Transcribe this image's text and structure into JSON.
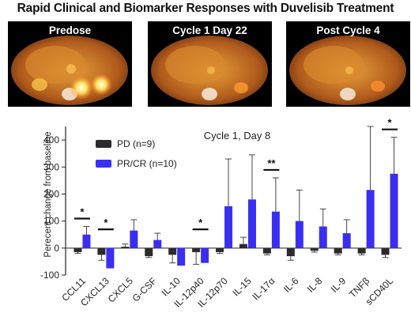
{
  "figure": {
    "title": "Rapid Clinical and Biomarker Responses with Duvelisib Treatment",
    "panels": [
      {
        "label": "Predose"
      },
      {
        "label": "Cycle 1 Day 22"
      },
      {
        "label": "Post Cycle 4"
      }
    ]
  },
  "colors": {
    "pd": "#2b2b2b",
    "prcr": "#3a2ff0",
    "scan_bg": "#000000"
  },
  "chart_data": {
    "type": "bar",
    "title": "Cycle 1, Day 8",
    "xlabel": "",
    "ylabel": "Perecent change from baseline",
    "ylim": [
      -100,
      450
    ],
    "yticks": [
      -100,
      0,
      100,
      200,
      300,
      400
    ],
    "grid": false,
    "legend_position": "top-left",
    "categories": [
      "CCL11",
      "CXCL13",
      "CXCL5",
      "G-CSF",
      "IL-10",
      "IL-12p40",
      "IL-12p70",
      "IL-15",
      "IL-17α",
      "IL-6",
      "IL-8",
      "IL-9",
      "TNFβ",
      "sCD40L"
    ],
    "series": [
      {
        "name": "PD (n=9)",
        "color": "#2b2b2b",
        "values": [
          -15,
          -25,
          5,
          -30,
          -25,
          -15,
          -15,
          15,
          -20,
          -30,
          -10,
          -20,
          -20,
          -25
        ],
        "errors": [
          5,
          20,
          10,
          5,
          30,
          45,
          5,
          25,
          5,
          15,
          5,
          5,
          5,
          10
        ]
      },
      {
        "name": "PR/CR (n=10)",
        "color": "#3a2ff0",
        "values": [
          50,
          -75,
          65,
          30,
          -65,
          -55,
          155,
          180,
          135,
          100,
          80,
          55,
          215,
          275
        ],
        "errors": [
          30,
          0,
          40,
          25,
          0,
          0,
          175,
          165,
          125,
          115,
          65,
          50,
          235,
          135
        ]
      }
    ],
    "significance": [
      {
        "category": "CCL11",
        "label": "*"
      },
      {
        "category": "CXCL13",
        "label": "*"
      },
      {
        "category": "IL-12p40",
        "label": "*"
      },
      {
        "category": "IL-17α",
        "label": "**"
      },
      {
        "category": "sCD40L",
        "label": "*"
      }
    ]
  }
}
